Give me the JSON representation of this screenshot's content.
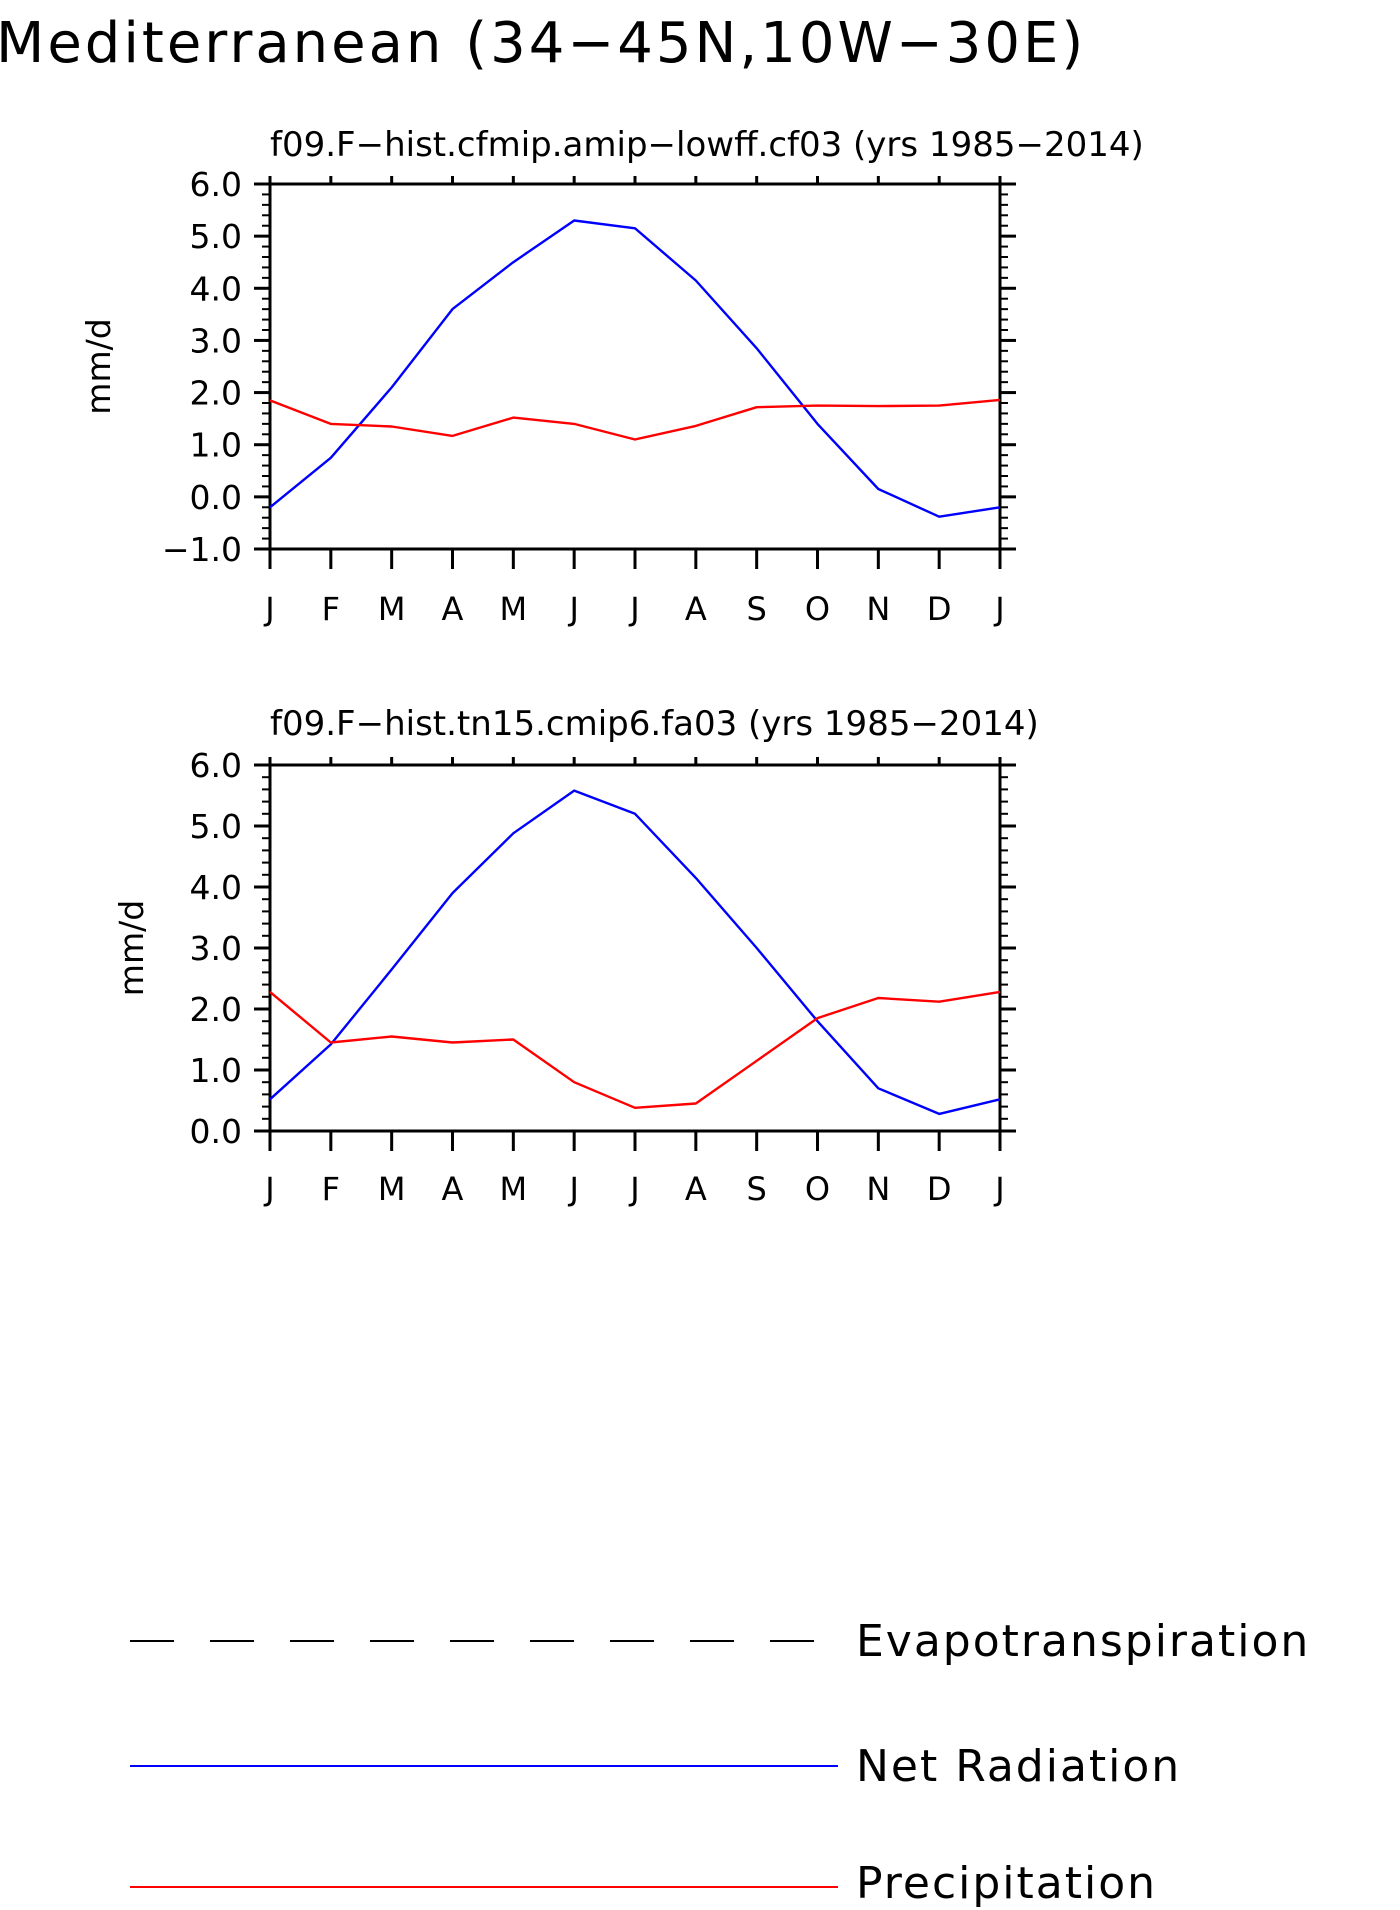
{
  "figure": {
    "title": "Mediterranean (34−45N,10W−30E)"
  },
  "legend": {
    "items": [
      {
        "label": "Evapotranspiration",
        "color": "#000000",
        "dash": "dashed"
      },
      {
        "label": "Net Radiation",
        "color": "#0000ff",
        "dash": "solid"
      },
      {
        "label": "Precipitation",
        "color": "#ff0000",
        "dash": "solid"
      }
    ]
  },
  "chart_data": [
    {
      "type": "line",
      "title": "f09.F−hist.cfmip.amip−lowff.cf03 (yrs 1985−2014)",
      "xlabel": "",
      "ylabel": "mm/d",
      "categories": [
        "J",
        "F",
        "M",
        "A",
        "M",
        "J",
        "J",
        "A",
        "S",
        "O",
        "N",
        "D",
        "J"
      ],
      "ylim": [
        -1.0,
        6.0
      ],
      "yticks": [
        "−1.0",
        "0.0",
        "1.0",
        "2.0",
        "3.0",
        "4.0",
        "5.0",
        "6.0"
      ],
      "series": [
        {
          "name": "Net Radiation",
          "color": "#0000ff",
          "values": [
            -0.2,
            0.75,
            2.1,
            3.6,
            4.5,
            5.3,
            5.15,
            4.15,
            2.85,
            1.4,
            0.15,
            -0.38,
            -0.2
          ]
        },
        {
          "name": "Precipitation",
          "color": "#ff0000",
          "values": [
            1.85,
            1.4,
            1.35,
            1.17,
            1.52,
            1.4,
            1.1,
            1.36,
            1.72,
            1.75,
            1.74,
            1.75,
            1.86
          ]
        }
      ]
    },
    {
      "type": "line",
      "title": "f09.F−hist.tn15.cmip6.fa03 (yrs 1985−2014)",
      "xlabel": "",
      "ylabel": "mm/d",
      "categories": [
        "J",
        "F",
        "M",
        "A",
        "M",
        "J",
        "J",
        "A",
        "S",
        "O",
        "N",
        "D",
        "J"
      ],
      "ylim": [
        0.0,
        6.0
      ],
      "yticks": [
        "0.0",
        "1.0",
        "2.0",
        "3.0",
        "4.0",
        "5.0",
        "6.0"
      ],
      "series": [
        {
          "name": "Net Radiation",
          "color": "#0000ff",
          "values": [
            0.52,
            1.42,
            2.65,
            3.9,
            4.88,
            5.58,
            5.2,
            4.15,
            3.0,
            1.8,
            0.7,
            0.28,
            0.52
          ]
        },
        {
          "name": "Precipitation",
          "color": "#ff0000",
          "values": [
            2.28,
            1.45,
            1.55,
            1.45,
            1.5,
            0.8,
            0.38,
            0.45,
            1.15,
            1.85,
            2.18,
            2.12,
            2.28
          ]
        }
      ]
    }
  ]
}
